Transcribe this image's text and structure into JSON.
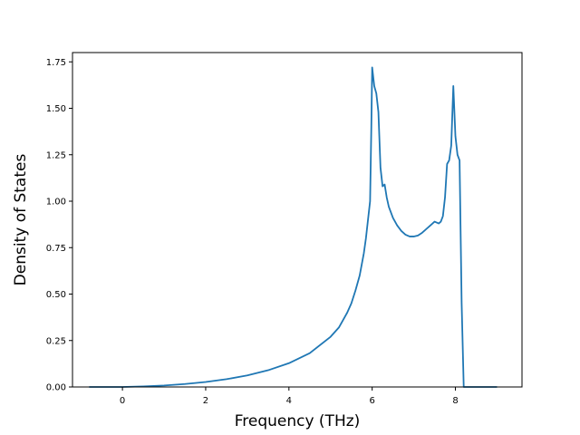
{
  "chart_data": {
    "type": "line",
    "title": "",
    "xlabel": "Frequency (THz)",
    "ylabel": "Density of States",
    "xlim": [
      -1.2,
      9.6
    ],
    "ylim": [
      0,
      1.8
    ],
    "xticks": [
      0,
      2,
      4,
      6,
      8
    ],
    "xtick_labels": [
      "0",
      "2",
      "4",
      "6",
      "8"
    ],
    "yticks": [
      0,
      0.25,
      0.5,
      0.75,
      1.0,
      1.25,
      1.5,
      1.75
    ],
    "ytick_labels": [
      "0.00",
      "0.25",
      "0.50",
      "0.75",
      "1.00",
      "1.25",
      "1.50",
      "1.75"
    ],
    "grid": false,
    "legend": "none",
    "series": [
      {
        "color": "#1f77b4",
        "x": [
          -0.8,
          0,
          0.5,
          1.0,
          1.5,
          2.0,
          2.5,
          3.0,
          3.5,
          4.0,
          4.5,
          5.0,
          5.2,
          5.4,
          5.5,
          5.6,
          5.7,
          5.8,
          5.85,
          5.9,
          5.95,
          5.98,
          6.0,
          6.05,
          6.1,
          6.15,
          6.2,
          6.25,
          6.3,
          6.35,
          6.4,
          6.5,
          6.6,
          6.7,
          6.8,
          6.9,
          7.0,
          7.1,
          7.2,
          7.3,
          7.4,
          7.5,
          7.6,
          7.65,
          7.7,
          7.75,
          7.8,
          7.85,
          7.9,
          7.95,
          8.0,
          8.05,
          8.1,
          8.15,
          8.2,
          8.22,
          9.0
        ],
        "y": [
          0.0,
          0.0,
          0.003,
          0.008,
          0.016,
          0.027,
          0.042,
          0.062,
          0.09,
          0.128,
          0.182,
          0.27,
          0.32,
          0.4,
          0.45,
          0.52,
          0.6,
          0.72,
          0.8,
          0.9,
          1.0,
          1.4,
          1.72,
          1.62,
          1.58,
          1.48,
          1.18,
          1.08,
          1.09,
          1.02,
          0.97,
          0.91,
          0.87,
          0.84,
          0.82,
          0.81,
          0.81,
          0.815,
          0.83,
          0.85,
          0.87,
          0.89,
          0.88,
          0.89,
          0.92,
          1.02,
          1.2,
          1.22,
          1.3,
          1.62,
          1.35,
          1.25,
          1.22,
          0.45,
          0.0,
          0.0,
          0.0
        ]
      }
    ]
  }
}
